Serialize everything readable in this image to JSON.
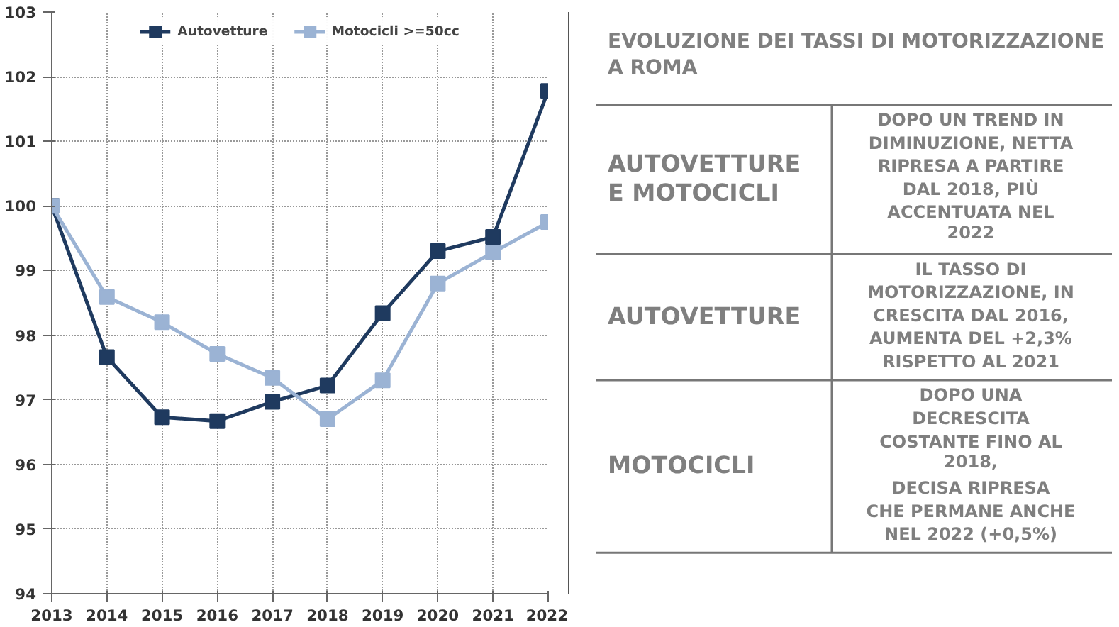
{
  "chart_data": [
    {
      "type": "line",
      "x": [
        2013,
        2014,
        2015,
        2016,
        2017,
        2018,
        2019,
        2020,
        2021,
        2022
      ],
      "series": [
        {
          "name": "Autovetture",
          "color": "#1f3a5f",
          "values": [
            100,
            97.66,
            96.73,
            96.67,
            96.97,
            97.22,
            98.34,
            99.3,
            99.52,
            101.78
          ]
        },
        {
          "name": "Motocicli >=50cc",
          "color": "#9bb3d4",
          "values": [
            100,
            98.59,
            98.2,
            97.71,
            97.34,
            96.7,
            97.3,
            98.8,
            99.28,
            99.75
          ]
        }
      ],
      "xlim": [
        2013,
        2022
      ],
      "xticks": [
        2013,
        2014,
        2015,
        2016,
        2017,
        2018,
        2019,
        2020,
        2021,
        2022
      ],
      "ylim": [
        94,
        103
      ],
      "yticks": [
        94,
        95,
        96,
        97,
        98,
        99,
        100,
        101,
        102,
        103
      ],
      "grid": true,
      "legend": "top",
      "marker": "square",
      "line_style": "solid"
    },
    {
      "type": "other",
      "title": "EVOLUZIONE DEI TASSI DI MOTORIZZAZIONE\nA ROMA",
      "annotations": [
        "AUTOVETTURE\nE MOTOCICLI",
        "DOPO UN TREND IN\nDIMINUZIONE, NETTA\nRIPRESA A PARTIRE\nDAL 2018, PIÙ\nACCENTUATA NEL\n2022",
        "AUTOVETTURE",
        "IL TASSO DI\nMOTORIZZAZIONE, IN\nCRESCITA DAL 2016,\nAUMENTA DEL +2,3%\nRISPETTO AL 2021",
        "MOTOCICLI",
        "DOPO UNA\nDECRESCITA\nCOSTANTE FINO AL\n2018,\nDECISA RIPRESA\nCHE PERMANE ANCHE\nNEL 2022 (+0,5%)"
      ]
    }
  ]
}
